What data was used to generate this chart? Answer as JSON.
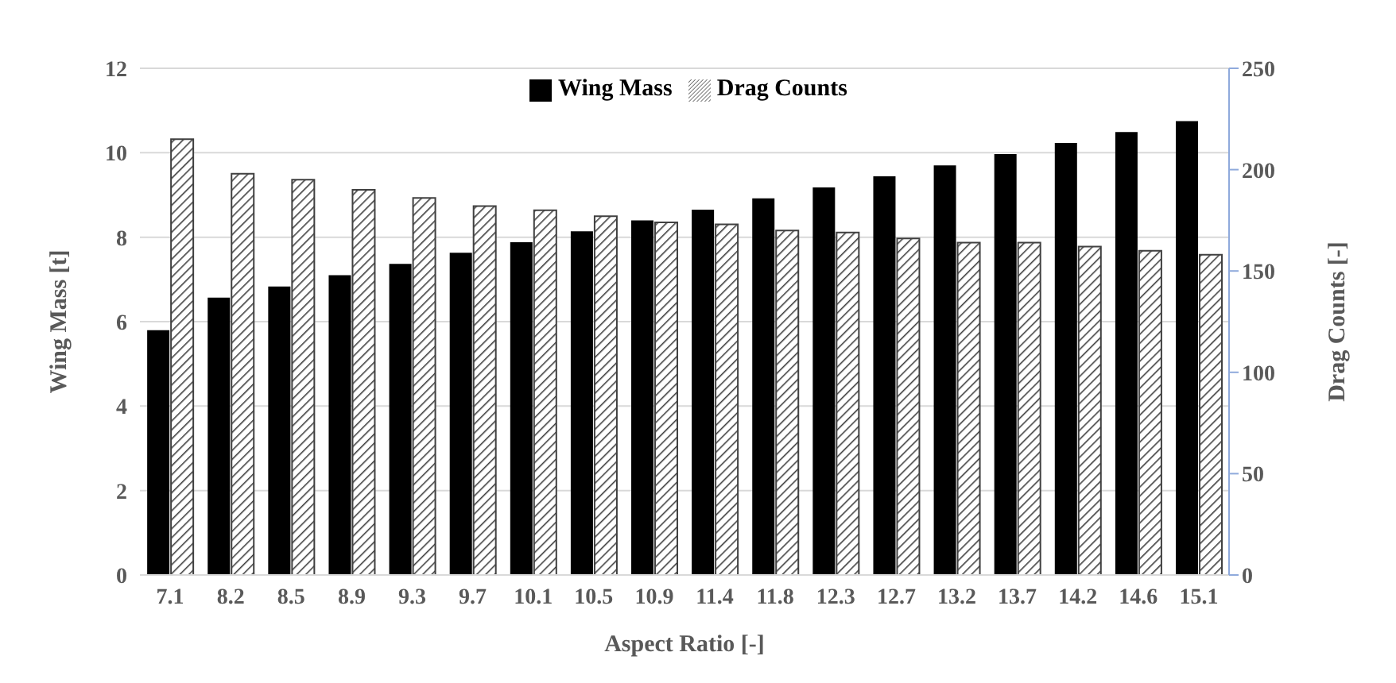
{
  "chart_data": {
    "type": "bar",
    "xlabel": "Aspect Ratio [-]",
    "ylabel": "Wing Mass [t]",
    "y2label": "Drag Counts [-]",
    "categories": [
      "7.1",
      "8.2",
      "8.5",
      "8.9",
      "9.3",
      "9.7",
      "10.1",
      "10.5",
      "10.9",
      "11.4",
      "11.8",
      "12.3",
      "12.7",
      "13.2",
      "13.7",
      "14.2",
      "14.6",
      "15.1"
    ],
    "series": [
      {
        "name": "Wing Mass",
        "color": "#000000",
        "values": [
          5.8,
          6.57,
          6.83,
          7.1,
          7.37,
          7.63,
          7.88,
          8.14,
          8.4,
          8.65,
          8.92,
          9.18,
          9.44,
          9.7,
          9.97,
          10.23,
          10.49,
          10.75
        ]
      },
      {
        "name": "Drag Counts",
        "color": "#404040",
        "axis": "y2",
        "values": [
          215,
          198,
          195,
          190,
          186,
          182,
          180,
          177,
          174,
          173,
          170,
          169,
          166,
          164,
          164,
          162,
          160,
          158
        ]
      }
    ],
    "ylim": [
      0,
      12
    ],
    "yticks": [
      0,
      2,
      4,
      6,
      8,
      10,
      12
    ],
    "y2lim": [
      0,
      250
    ],
    "y2ticks": [
      0,
      50,
      100,
      150,
      200,
      250
    ],
    "grid": "y",
    "legend": "top"
  }
}
